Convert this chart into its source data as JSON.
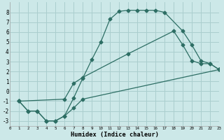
{
  "xlabel": "Humidex (Indice chaleur)",
  "bg_color": "#cce8e8",
  "grid_color": "#aacece",
  "line_color": "#2d6e64",
  "xlim": [
    0,
    23
  ],
  "ylim": [
    -3.5,
    9.0
  ],
  "xticks": [
    0,
    1,
    2,
    3,
    4,
    5,
    6,
    7,
    8,
    9,
    10,
    11,
    12,
    13,
    14,
    15,
    16,
    17,
    18,
    19,
    20,
    21,
    22,
    23
  ],
  "yticks": [
    -3,
    -2,
    -1,
    0,
    1,
    2,
    3,
    4,
    5,
    6,
    7,
    8
  ],
  "curve1_x": [
    1,
    2,
    3,
    4,
    5,
    6,
    7,
    8,
    9,
    10,
    11,
    12,
    13,
    14,
    15,
    16,
    17,
    19,
    20,
    21,
    22,
    23
  ],
  "curve1_y": [
    -1.0,
    -2.0,
    -2.0,
    -3.0,
    -3.0,
    -2.5,
    -0.7,
    1.3,
    3.2,
    5.0,
    7.3,
    8.1,
    8.2,
    8.2,
    8.2,
    8.2,
    8.0,
    6.1,
    4.7,
    3.1,
    2.8,
    2.2
  ],
  "curve2_x": [
    1,
    6,
    7,
    8,
    13,
    18,
    19,
    20,
    21,
    22,
    23
  ],
  "curve2_y": [
    -1.0,
    -0.8,
    0.8,
    1.4,
    3.8,
    6.1,
    4.7,
    3.1,
    2.8,
    2.8,
    2.2
  ],
  "curve3_x": [
    1,
    2,
    3,
    4,
    5,
    6,
    7,
    8,
    23
  ],
  "curve3_y": [
    -1.0,
    -2.0,
    -2.0,
    -3.0,
    -3.0,
    -2.5,
    -1.7,
    -0.8,
    2.2
  ],
  "marker": "D",
  "markersize": 2.5
}
